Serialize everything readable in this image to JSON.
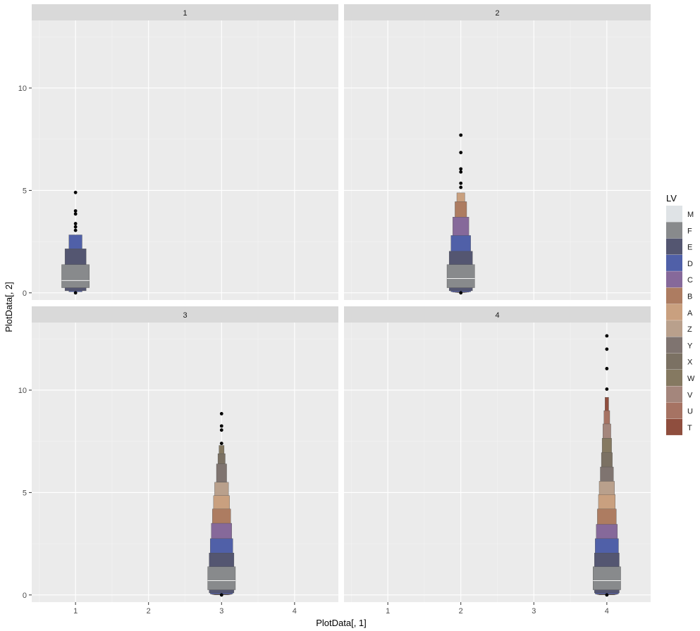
{
  "chart_data": {
    "type": "letter-value-boxplot",
    "facets": [
      "1",
      "2",
      "3",
      "4"
    ],
    "xlabel": "PlotData[, 1]",
    "ylabel": "PlotData[, 2]",
    "xlim": [
      0.4,
      4.6
    ],
    "ylim": [
      -0.35,
      13.3
    ],
    "xticks": [
      1,
      2,
      3,
      4
    ],
    "yticks": [
      0,
      5,
      10
    ],
    "legend": {
      "title": "LV",
      "position": "right",
      "entries": [
        {
          "label": "M",
          "color": "#dfe3e6"
        },
        {
          "label": "F",
          "color": "#888a8c"
        },
        {
          "label": "E",
          "color": "#545671"
        },
        {
          "label": "D",
          "color": "#5060a8"
        },
        {
          "label": "C",
          "color": "#86699a"
        },
        {
          "label": "B",
          "color": "#ad7c61"
        },
        {
          "label": "A",
          "color": "#c9a07f"
        },
        {
          "label": "Z",
          "color": "#b9a08c"
        },
        {
          "label": "Y",
          "color": "#7f7470"
        },
        {
          "label": "X",
          "color": "#7b7163"
        },
        {
          "label": "W",
          "color": "#857961"
        },
        {
          "label": "V",
          "color": "#a4867c"
        },
        {
          "label": "U",
          "color": "#a67363"
        },
        {
          "label": "T",
          "color": "#8f4e3e"
        }
      ]
    },
    "panels": [
      {
        "facet": "1",
        "x": 1,
        "boxes": [
          {
            "lv": "F",
            "lower": 0.25,
            "upper": 1.38,
            "width": 0.38
          },
          {
            "lv": "E",
            "lower": 0.1,
            "upper": 2.15,
            "width": 0.29
          },
          {
            "lv": "D",
            "lower": 0.05,
            "upper": 2.83,
            "width": 0.18
          }
        ],
        "median": 0.6,
        "outliers": [
          0.0,
          3.05,
          3.22,
          3.38,
          3.85,
          4.0,
          4.9
        ]
      },
      {
        "facet": "2",
        "x": 2,
        "boxes": [
          {
            "lv": "F",
            "lower": 0.25,
            "upper": 1.38,
            "width": 0.38
          },
          {
            "lv": "E",
            "lower": 0.1,
            "upper": 2.03,
            "width": 0.32
          },
          {
            "lv": "D",
            "lower": 0.05,
            "upper": 2.8,
            "width": 0.27
          },
          {
            "lv": "C",
            "lower": 0.03,
            "upper": 3.7,
            "width": 0.22
          },
          {
            "lv": "B",
            "lower": 0.02,
            "upper": 4.45,
            "width": 0.16
          },
          {
            "lv": "A",
            "lower": 0.01,
            "upper": 4.88,
            "width": 0.11
          }
        ],
        "median": 0.7,
        "outliers": [
          0.0,
          5.15,
          5.35,
          5.9,
          6.05,
          6.85,
          7.7
        ]
      },
      {
        "facet": "3",
        "x": 3,
        "boxes": [
          {
            "lv": "F",
            "lower": 0.25,
            "upper": 1.38,
            "width": 0.38
          },
          {
            "lv": "E",
            "lower": 0.1,
            "upper": 2.05,
            "width": 0.34
          },
          {
            "lv": "D",
            "lower": 0.05,
            "upper": 2.75,
            "width": 0.31
          },
          {
            "lv": "C",
            "lower": 0.03,
            "upper": 3.5,
            "width": 0.28
          },
          {
            "lv": "B",
            "lower": 0.02,
            "upper": 4.2,
            "width": 0.25
          },
          {
            "lv": "A",
            "lower": 0.01,
            "upper": 4.85,
            "width": 0.22
          },
          {
            "lv": "Z",
            "lower": 0.0,
            "upper": 5.5,
            "width": 0.19
          },
          {
            "lv": "Y",
            "lower": 0.0,
            "upper": 6.4,
            "width": 0.14
          },
          {
            "lv": "X",
            "lower": 0.0,
            "upper": 6.9,
            "width": 0.1
          },
          {
            "lv": "W",
            "lower": 0.0,
            "upper": 7.3,
            "width": 0.07
          }
        ],
        "median": 0.7,
        "outliers": [
          0.0,
          7.4,
          8.05,
          8.25,
          8.85
        ]
      },
      {
        "facet": "4",
        "x": 4,
        "boxes": [
          {
            "lv": "F",
            "lower": 0.25,
            "upper": 1.38,
            "width": 0.38
          },
          {
            "lv": "E",
            "lower": 0.1,
            "upper": 2.05,
            "width": 0.34
          },
          {
            "lv": "D",
            "lower": 0.05,
            "upper": 2.75,
            "width": 0.32
          },
          {
            "lv": "C",
            "lower": 0.03,
            "upper": 3.45,
            "width": 0.29
          },
          {
            "lv": "B",
            "lower": 0.02,
            "upper": 4.2,
            "width": 0.26
          },
          {
            "lv": "A",
            "lower": 0.01,
            "upper": 4.9,
            "width": 0.23
          },
          {
            "lv": "Z",
            "lower": 0.0,
            "upper": 5.55,
            "width": 0.21
          },
          {
            "lv": "Y",
            "lower": 0.0,
            "upper": 6.25,
            "width": 0.18
          },
          {
            "lv": "X",
            "lower": 0.0,
            "upper": 6.95,
            "width": 0.15
          },
          {
            "lv": "W",
            "lower": 0.0,
            "upper": 7.65,
            "width": 0.13
          },
          {
            "lv": "V",
            "lower": 0.0,
            "upper": 8.35,
            "width": 0.11
          },
          {
            "lv": "U",
            "lower": 0.0,
            "upper": 9.0,
            "width": 0.08
          },
          {
            "lv": "T",
            "lower": 0.0,
            "upper": 9.65,
            "width": 0.05
          }
        ],
        "median": 0.7,
        "outliers": [
          0.0,
          10.05,
          11.05,
          12.0,
          12.65
        ]
      }
    ]
  }
}
